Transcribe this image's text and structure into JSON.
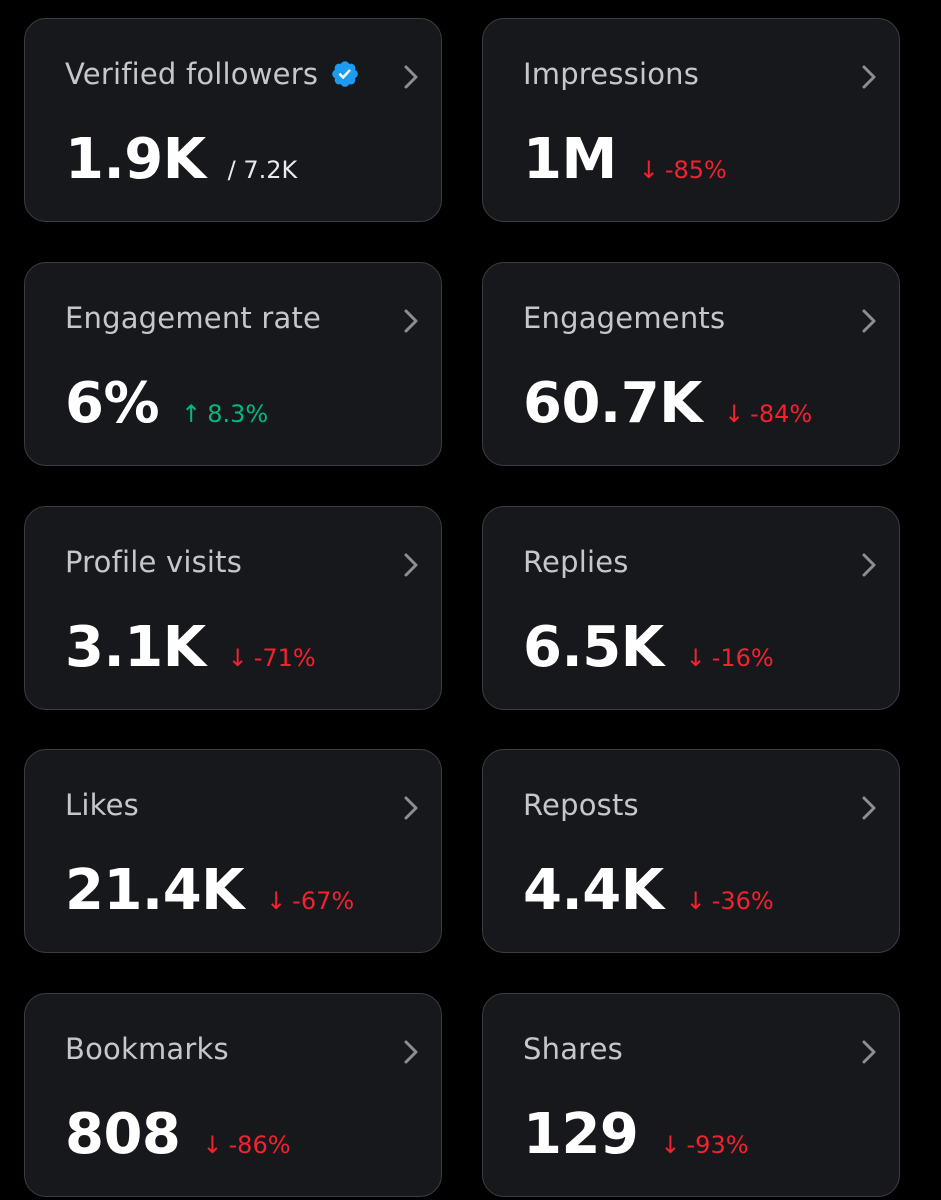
{
  "colors": {
    "background": "#000000",
    "card": "#16181c",
    "border": "#3a3d42",
    "negative": "#f4212e",
    "positive": "#00ba7c",
    "verified": "#1d9bf0"
  },
  "cards": [
    {
      "title": "Verified followers",
      "value": "1.9K",
      "total": "/ 7.2K",
      "verified_icon": "verified-badge-icon"
    },
    {
      "title": "Impressions",
      "value": "1M",
      "change": "-85%",
      "direction": "down",
      "arrow": "↓"
    },
    {
      "title": "Engagement rate",
      "value": "6%",
      "change": "8.3%",
      "direction": "up",
      "arrow": "↑"
    },
    {
      "title": "Engagements",
      "value": "60.7K",
      "change": "-84%",
      "direction": "down",
      "arrow": "↓"
    },
    {
      "title": "Profile visits",
      "value": "3.1K",
      "change": "-71%",
      "direction": "down",
      "arrow": "↓"
    },
    {
      "title": "Replies",
      "value": "6.5K",
      "change": "-16%",
      "direction": "down",
      "arrow": "↓"
    },
    {
      "title": "Likes",
      "value": "21.4K",
      "change": "-67%",
      "direction": "down",
      "arrow": "↓"
    },
    {
      "title": "Reposts",
      "value": "4.4K",
      "change": "-36%",
      "direction": "down",
      "arrow": "↓"
    },
    {
      "title": "Bookmarks",
      "value": "808",
      "change": "-86%",
      "direction": "down",
      "arrow": "↓"
    },
    {
      "title": "Shares",
      "value": "129",
      "change": "-93%",
      "direction": "down",
      "arrow": "↓"
    }
  ]
}
